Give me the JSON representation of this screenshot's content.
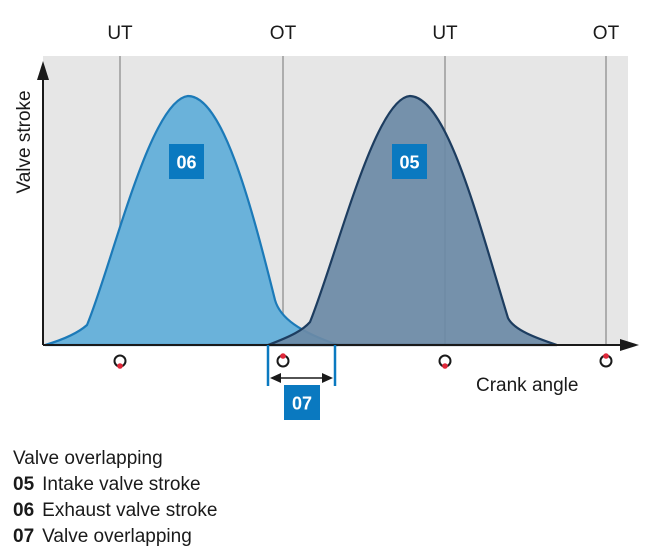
{
  "diagram": {
    "top_markers": [
      {
        "label": "UT",
        "angle": 0
      },
      {
        "label": "OT",
        "angle": 1
      },
      {
        "label": "UT",
        "angle": 2
      },
      {
        "label": "OT",
        "angle": 3
      }
    ],
    "y_axis_label": "Valve stroke",
    "x_axis_label": "Crank angle",
    "curves": [
      {
        "id": "06",
        "name": "Exhaust valve stroke",
        "fill": "#6ab2da",
        "stroke": "#1c7ab8"
      },
      {
        "id": "05",
        "name": "Intake valve stroke",
        "fill": "#7895ad",
        "stroke": "#1d3d60"
      }
    ],
    "overlap_label": "07",
    "colors": {
      "plot_background": "#e6e6e6",
      "marker_line": "#9a9a9a",
      "axis": "#1a1a1a",
      "badge": "#0a79c0",
      "dot": "#e0283a"
    }
  },
  "legend": {
    "title": "Valve overlapping",
    "items": [
      {
        "code": "05",
        "text": "Intake valve stroke"
      },
      {
        "code": "06",
        "text": "Exhaust valve stroke"
      },
      {
        "code": "07",
        "text": "Valve overlapping"
      }
    ]
  }
}
